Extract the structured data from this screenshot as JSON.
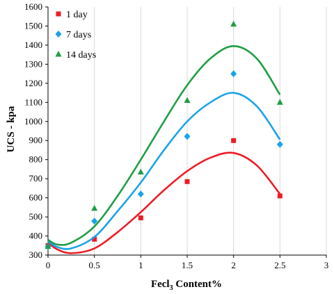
{
  "chart_data": {
    "type": "scatter",
    "xlabel_main": "Fecl",
    "xlabel_sub": "3",
    "xlabel_tail": " Content%",
    "ylabel": "UCS - kpa",
    "xlim": [
      0,
      3
    ],
    "ylim": [
      300,
      1600
    ],
    "xticks": [
      "0",
      "0.5",
      "1",
      "1.5",
      "2",
      "2.5",
      "3"
    ],
    "yticks": [
      "300",
      "400",
      "500",
      "600",
      "700",
      "800",
      "900",
      "1000",
      "1100",
      "1200",
      "1300",
      "1400",
      "1500",
      "1600"
    ],
    "grid": "vertical",
    "legend": "top-left",
    "series": [
      {
        "name": "1 day",
        "marker": "square",
        "color": "#ee1c25",
        "x": [
          0,
          0.5,
          1,
          1.5,
          2,
          2.5
        ],
        "y": [
          350,
          383,
          495,
          685,
          900,
          610
        ],
        "trend_x": [
          0,
          0.1,
          0.25,
          0.5,
          0.75,
          1,
          1.25,
          1.5,
          1.75,
          2,
          2.25,
          2.5
        ],
        "trend_y": [
          365,
          330,
          310,
          335,
          420,
          525,
          640,
          740,
          810,
          835,
          770,
          620
        ]
      },
      {
        "name": "7 days",
        "marker": "diamond",
        "color": "#1aa3e8",
        "x": [
          0,
          0.5,
          1,
          1.5,
          2,
          2.5
        ],
        "y": [
          345,
          478,
          620,
          922,
          1250,
          880
        ],
        "trend_x": [
          0,
          0.1,
          0.25,
          0.5,
          0.75,
          1,
          1.25,
          1.5,
          1.75,
          2,
          2.25,
          2.5
        ],
        "trend_y": [
          372,
          342,
          335,
          395,
          530,
          680,
          850,
          1000,
          1100,
          1150,
          1080,
          905
        ]
      },
      {
        "name": "14 days",
        "marker": "triangle",
        "color": "#1f9e46",
        "x": [
          0,
          0.5,
          1,
          1.5,
          2,
          2.5
        ],
        "y": [
          345,
          545,
          735,
          1110,
          1510,
          1100
        ],
        "trend_x": [
          0,
          0.1,
          0.25,
          0.5,
          0.75,
          1,
          1.25,
          1.5,
          1.75,
          2,
          2.25,
          2.5
        ],
        "trend_y": [
          380,
          355,
          365,
          450,
          610,
          800,
          1000,
          1190,
          1330,
          1395,
          1330,
          1140
        ]
      }
    ]
  }
}
